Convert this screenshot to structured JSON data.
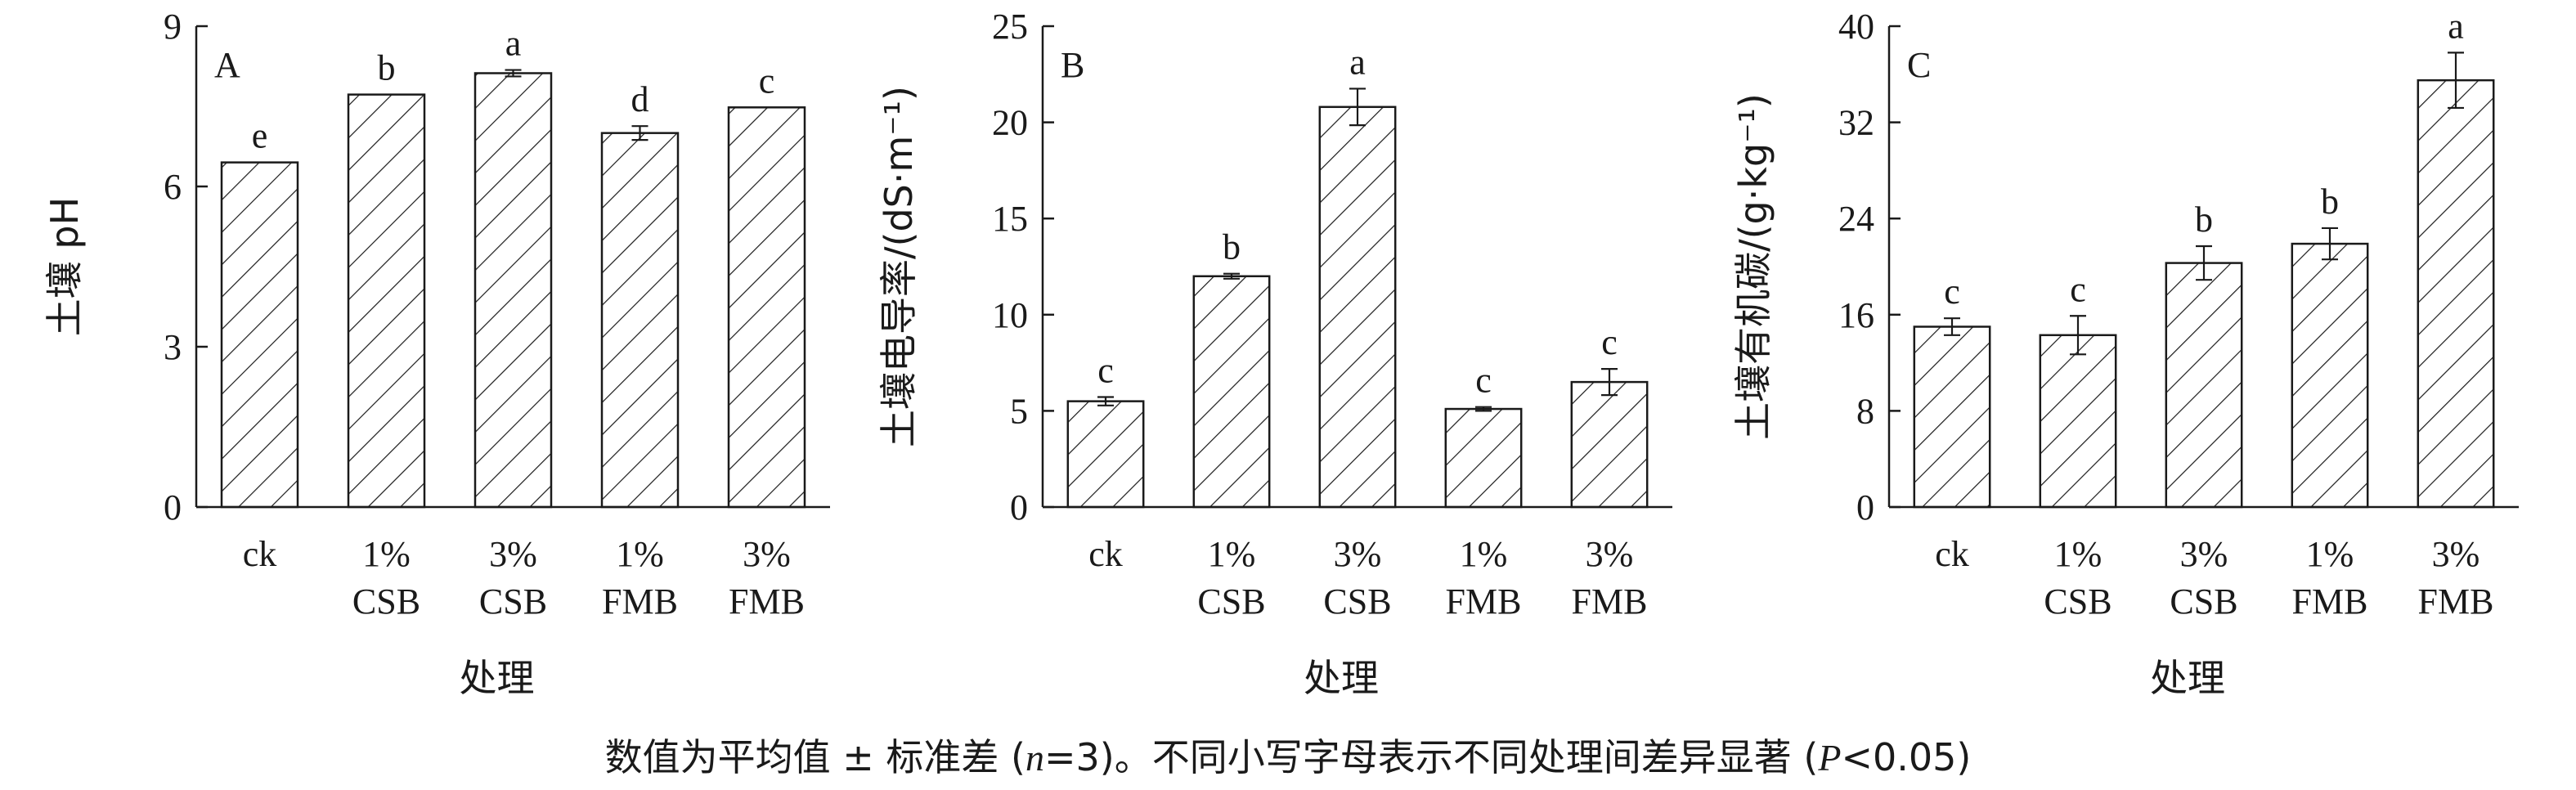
{
  "figure": {
    "caption_prefix": "数值为平均值 ± 标准差 (",
    "caption_n_var": "n",
    "caption_n_val": "=3)。不同小写字母表示不同处理间差异显著 (",
    "caption_p_var": "P",
    "caption_p_val": "<0.05)"
  },
  "chart_data": [
    {
      "type": "bar",
      "panel": "A",
      "categories": [
        [
          "ck"
        ],
        [
          "1%",
          "CSB"
        ],
        [
          "3%",
          "CSB"
        ],
        [
          "1%",
          "FMB"
        ],
        [
          "3%",
          "FMB"
        ]
      ],
      "values": [
        6.45,
        7.72,
        8.12,
        7.0,
        7.48
      ],
      "errors": [
        0.0,
        0.0,
        0.06,
        0.13,
        0.0
      ],
      "letters": [
        "e",
        "b",
        "a",
        "d",
        "c"
      ],
      "ylabel": "土壤 pH",
      "xlabel": "处理",
      "ylim": [
        0,
        9
      ],
      "yticks": [
        "0",
        "3",
        "6",
        "9"
      ],
      "fill": "diagonal-hatch",
      "grid": false,
      "legend": "none"
    },
    {
      "type": "bar",
      "panel": "B",
      "categories": [
        [
          "ck"
        ],
        [
          "1%",
          "CSB"
        ],
        [
          "3%",
          "CSB"
        ],
        [
          "1%",
          "FMB"
        ],
        [
          "3%",
          "FMB"
        ]
      ],
      "values": [
        5.5,
        12.0,
        20.8,
        5.1,
        6.5
      ],
      "errors": [
        0.22,
        0.13,
        0.95,
        0.1,
        0.68
      ],
      "letters": [
        "c",
        "b",
        "a",
        "c",
        "c"
      ],
      "ylabel": "土壤电导率/(dS·m⁻¹)",
      "xlabel": "处理",
      "ylim": [
        0,
        25
      ],
      "yticks": [
        "0",
        "5",
        "10",
        "15",
        "20",
        "25"
      ],
      "fill": "diagonal-hatch",
      "grid": false,
      "legend": "none"
    },
    {
      "type": "bar",
      "panel": "C",
      "categories": [
        [
          "ck"
        ],
        [
          "1%",
          "CSB"
        ],
        [
          "3%",
          "CSB"
        ],
        [
          "1%",
          "FMB"
        ],
        [
          "3%",
          "FMB"
        ]
      ],
      "values": [
        15.0,
        14.3,
        20.3,
        21.9,
        35.5
      ],
      "errors": [
        0.7,
        1.6,
        1.4,
        1.3,
        2.3
      ],
      "letters": [
        "c",
        "c",
        "b",
        "b",
        "a"
      ],
      "ylabel": "土壤有机碳/(g·kg⁻¹)",
      "xlabel": "处理",
      "ylim": [
        0,
        40
      ],
      "yticks": [
        "0",
        "8",
        "16",
        "24",
        "32",
        "40"
      ],
      "fill": "diagonal-hatch",
      "grid": false,
      "legend": "none"
    }
  ]
}
